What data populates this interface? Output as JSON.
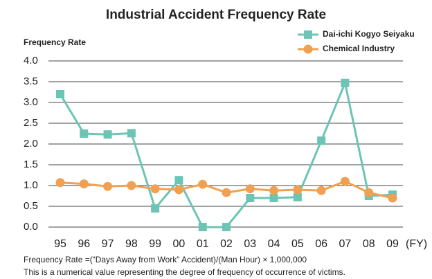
{
  "chart_data": {
    "type": "line",
    "title": "Industrial Accident Frequency Rate",
    "y_label": "Frequency Rate",
    "x_label": "(FY)",
    "categories": [
      "95",
      "96",
      "97",
      "98",
      "99",
      "00",
      "01",
      "02",
      "03",
      "04",
      "05",
      "06",
      "07",
      "08",
      "09"
    ],
    "series": [
      {
        "name": "Dai-ichi Kogyo Seiyaku",
        "color": "#6cc4b4",
        "marker": "square",
        "values": [
          3.2,
          2.25,
          2.23,
          2.26,
          0.45,
          1.13,
          0.0,
          0.0,
          0.7,
          0.7,
          0.72,
          2.08,
          3.47,
          0.75,
          0.78
        ]
      },
      {
        "name": "Chemical Industry",
        "color": "#f0a050",
        "marker": "circle",
        "values": [
          1.07,
          1.04,
          0.98,
          1.0,
          0.92,
          0.9,
          1.03,
          0.83,
          0.92,
          0.88,
          0.9,
          0.88,
          1.1,
          0.83,
          0.7
        ]
      }
    ],
    "ylim": [
      0,
      4
    ],
    "yticks": [
      {
        "value": 0,
        "label": "0.0"
      },
      0.5,
      {
        "value": 1,
        "label": "1.0"
      },
      1.5,
      {
        "value": 2,
        "label": "2.0"
      },
      2.5,
      {
        "value": 3,
        "label": "3.0"
      },
      3.5,
      {
        "value": 4,
        "label": "4.0"
      }
    ],
    "grid": true,
    "legend": "top-right",
    "notes": [
      "Frequency Rate =(“Days Away from Work” Accident)/(Man Hour) × 1,000,000",
      "This is a numerical value representing the degree of frequency of occurrence of victims."
    ]
  }
}
